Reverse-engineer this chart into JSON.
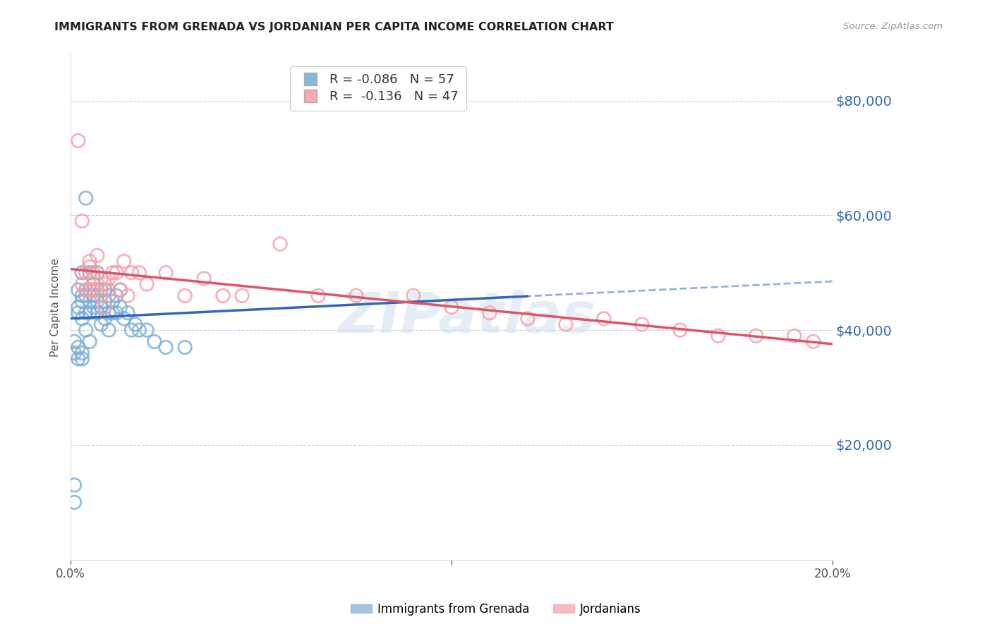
{
  "title": "IMMIGRANTS FROM GRENADA VS JORDANIAN PER CAPITA INCOME CORRELATION CHART",
  "source": "Source: ZipAtlas.com",
  "ylabel": "Per Capita Income",
  "yticks": [
    0,
    20000,
    40000,
    60000,
    80000
  ],
  "ytick_labels": [
    "",
    "$20,000",
    "$40,000",
    "$60,000",
    "$80,000"
  ],
  "xlim": [
    0.0,
    0.2
  ],
  "ylim": [
    0,
    88000
  ],
  "legend1_label": "R = -0.086   N = 57",
  "legend2_label": "R =  -0.136   N = 47",
  "legend_xlabel1": "Immigrants from Grenada",
  "legend_xlabel2": "Jordanians",
  "blue_color": "#7BAFD4",
  "pink_color": "#F4A0A8",
  "blue_line_color": "#3366BB",
  "pink_line_color": "#DD5566",
  "blue_dashed_color": "#88AADD",
  "watermark": "ZIPatlas",
  "blue_scatter_x": [
    0.001,
    0.001,
    0.002,
    0.002,
    0.002,
    0.003,
    0.003,
    0.003,
    0.003,
    0.004,
    0.004,
    0.004,
    0.004,
    0.005,
    0.005,
    0.005,
    0.005,
    0.005,
    0.006,
    0.006,
    0.006,
    0.006,
    0.007,
    0.007,
    0.007,
    0.007,
    0.008,
    0.008,
    0.008,
    0.009,
    0.009,
    0.009,
    0.01,
    0.01,
    0.01,
    0.011,
    0.011,
    0.012,
    0.012,
    0.013,
    0.013,
    0.014,
    0.015,
    0.016,
    0.017,
    0.018,
    0.02,
    0.022,
    0.025,
    0.03,
    0.001,
    0.001,
    0.002,
    0.002,
    0.003,
    0.003,
    0.004
  ],
  "blue_scatter_y": [
    13000,
    10000,
    43000,
    47000,
    44000,
    45000,
    42000,
    46000,
    50000,
    47000,
    46000,
    43000,
    40000,
    38000,
    50000,
    47000,
    45000,
    43000,
    48000,
    47000,
    46000,
    44000,
    50000,
    47000,
    45000,
    43000,
    47000,
    44000,
    41000,
    47000,
    45000,
    42000,
    46000,
    43000,
    40000,
    45000,
    43000,
    46000,
    43000,
    47000,
    44000,
    42000,
    43000,
    40000,
    41000,
    40000,
    40000,
    38000,
    37000,
    37000,
    38000,
    36000,
    35000,
    37000,
    36000,
    35000,
    63000
  ],
  "pink_scatter_x": [
    0.002,
    0.003,
    0.003,
    0.004,
    0.004,
    0.005,
    0.005,
    0.005,
    0.006,
    0.006,
    0.006,
    0.007,
    0.007,
    0.008,
    0.008,
    0.009,
    0.009,
    0.01,
    0.01,
    0.011,
    0.012,
    0.013,
    0.014,
    0.015,
    0.016,
    0.018,
    0.02,
    0.025,
    0.03,
    0.035,
    0.04,
    0.045,
    0.055,
    0.065,
    0.075,
    0.09,
    0.1,
    0.11,
    0.12,
    0.13,
    0.14,
    0.15,
    0.16,
    0.17,
    0.18,
    0.19,
    0.195
  ],
  "pink_scatter_y": [
    73000,
    59000,
    48000,
    47000,
    50000,
    47000,
    51000,
    52000,
    47000,
    49000,
    50000,
    47000,
    53000,
    49000,
    46000,
    48000,
    44000,
    49000,
    47000,
    50000,
    50000,
    47000,
    52000,
    46000,
    50000,
    50000,
    48000,
    50000,
    46000,
    49000,
    46000,
    46000,
    55000,
    46000,
    46000,
    46000,
    44000,
    43000,
    42000,
    41000,
    42000,
    41000,
    40000,
    39000,
    39000,
    39000,
    38000
  ]
}
